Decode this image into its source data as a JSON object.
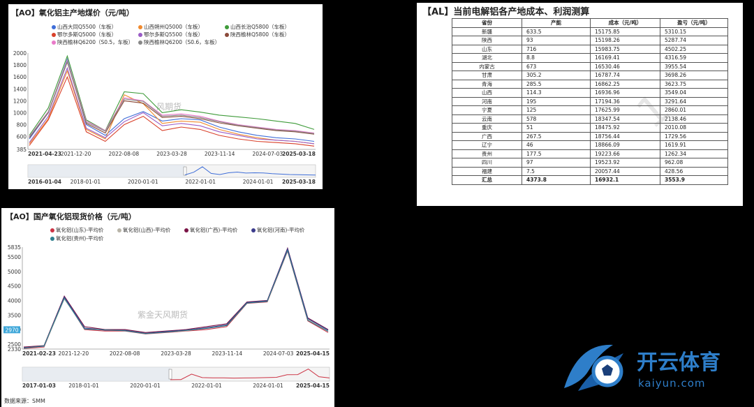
{
  "panel1": {
    "title": "【AO】氧化铝主产地煤价（元/吨）",
    "watermark": "风期货",
    "chart_data": {
      "type": "line",
      "title": "【AO】氧化铝主产地煤价（元/吨）",
      "yticks": [
        385.0,
        600,
        800,
        1000,
        1200,
        1400,
        1600,
        1800,
        2000
      ],
      "ylim": [
        385,
        2000
      ],
      "xticks_top": [
        "2021-04-23",
        "2021-12-20",
        "2022-08-08",
        "2023-03-28",
        "2023-11-14",
        "2024-07-03",
        "2025-03-18"
      ],
      "xticks_nav": [
        "2016-01-04",
        "2018-01-01",
        "2020-01-01",
        "2022-01-01",
        "2024-01-01",
        "2025-03-18"
      ],
      "series": [
        {
          "name": "山西大同Q5500（车板）",
          "color": "#3f6ed8",
          "values": [
            560,
            1000,
            1900,
            800,
            620,
            900,
            1020,
            860,
            900,
            880,
            760,
            680,
            620,
            580,
            560,
            520
          ]
        },
        {
          "name": "山西朔州Q5000（车板）",
          "color": "#f08a2e",
          "values": [
            480,
            900,
            1700,
            720,
            560,
            1300,
            1150,
            820,
            860,
            840,
            720,
            640,
            580,
            540,
            520,
            480
          ]
        },
        {
          "name": "山西长治Q5800（车板）",
          "color": "#3f9b3a",
          "values": [
            620,
            1080,
            1950,
            880,
            700,
            1350,
            1320,
            1000,
            1050,
            1010,
            960,
            930,
            900,
            860,
            820,
            720
          ]
        },
        {
          "name": "鄂尔多斯Q5000（车板）",
          "color": "#d9402a",
          "values": [
            450,
            880,
            1600,
            680,
            520,
            800,
            940,
            700,
            760,
            720,
            620,
            560,
            520,
            500,
            480,
            440
          ]
        },
        {
          "name": "鄂尔多斯Q5500（车板）",
          "color": "#9a5cc6",
          "values": [
            500,
            940,
            1750,
            740,
            580,
            850,
            1000,
            780,
            820,
            780,
            680,
            620,
            560,
            540,
            520,
            480
          ]
        },
        {
          "name": "陕西榆林Q5800（车板）",
          "color": "#8b4a3a",
          "values": [
            580,
            1000,
            1850,
            820,
            660,
            1200,
            1160,
            920,
            940,
            900,
            830,
            780,
            740,
            700,
            680,
            640
          ]
        },
        {
          "name": "陕西榆林Q6200（S0.5，车板）",
          "color": "#e97ac9",
          "values": [
            600,
            1020,
            1880,
            860,
            700,
            1250,
            1200,
            960,
            980,
            940,
            860,
            800,
            760,
            720,
            700,
            660
          ]
        },
        {
          "name": "陕西榆林Q6200（S0.6，车板）",
          "color": "#888888",
          "values": [
            590,
            1010,
            1860,
            840,
            690,
            1230,
            1190,
            940,
            960,
            920,
            850,
            790,
            750,
            710,
            690,
            650
          ]
        }
      ]
    },
    "legend": [
      "山西大同Q5500（车板）",
      "山西朔州Q5000（车板）",
      "山西长治Q5800（车板）",
      "鄂尔多斯Q5000（车板）",
      "鄂尔多斯Q5500（车板）",
      "陕西榆林Q5800（车板）",
      "陕西榆林Q6200（S0.5，车板）",
      "陕西榆林Q6200（S0.6，车板）"
    ]
  },
  "panel2": {
    "title": "【AL】当前电解铝各产地成本、利润测算",
    "watermark": "1",
    "chart_data": {
      "type": "table",
      "columns": [
        "省份",
        "产能",
        "成本（元/吨）",
        "盈亏（元/吨）"
      ],
      "rows": [
        [
          "新疆",
          "633.5",
          "15175.85",
          "5310.15"
        ],
        [
          "陕西",
          "93",
          "15198.26",
          "5287.74"
        ],
        [
          "山东",
          "716",
          "15983.75",
          "4502.25"
        ],
        [
          "湖北",
          "8.8",
          "16169.41",
          "4316.59"
        ],
        [
          "内蒙古",
          "673",
          "16530.46",
          "3955.54"
        ],
        [
          "甘肃",
          "305.2",
          "16787.74",
          "3698.26"
        ],
        [
          "青海",
          "285.5",
          "16862.25",
          "3623.75"
        ],
        [
          "山西",
          "114.3",
          "16936.96",
          "3549.04"
        ],
        [
          "河南",
          "195",
          "17194.36",
          "3291.64"
        ],
        [
          "宁夏",
          "125",
          "17625.99",
          "2860.01"
        ],
        [
          "云南",
          "578",
          "18347.54",
          "2138.46"
        ],
        [
          "重庆",
          "51",
          "18475.92",
          "2010.08"
        ],
        [
          "广西",
          "267.5",
          "18756.44",
          "1729.56"
        ],
        [
          "辽宁",
          "46",
          "18866.09",
          "1619.91"
        ],
        [
          "贵州",
          "177.5",
          "19223.66",
          "1262.34"
        ],
        [
          "四川",
          "97",
          "19523.92",
          "962.08"
        ],
        [
          "福建",
          "7.5",
          "20057.44",
          "428.56"
        ],
        [
          "汇总",
          "4373.8",
          "16932.1",
          "3553.9"
        ]
      ]
    }
  },
  "panel3": {
    "title": "【AO】国产氧化铝现货价格（元/吨）",
    "watermark": "紫金天风期货",
    "source": "数据来源：SMM",
    "last_value": "2970",
    "chart_data": {
      "type": "line",
      "title": "【AO】国产氧化铝现货价格（元/吨）",
      "yticks": [
        2330,
        2500,
        3000,
        3500,
        4000,
        4500,
        5000,
        5500,
        5835
      ],
      "ylim": [
        2330,
        5835
      ],
      "xticks_top": [
        "2021-02-23",
        "2021-12-20",
        "2022-08-08",
        "2023-03-28",
        "2023-11-14",
        "2024-07-03",
        "2025-04-15"
      ],
      "xticks_nav": [
        "2017-01-03",
        "2018-01-01",
        "2020-01-01",
        "2022-01-01",
        "2024-01-01",
        "2025-04-15"
      ],
      "series": [
        {
          "name": "氧化铝(山东)-平均价",
          "color": "#cc3344",
          "values": [
            2350,
            2400,
            4100,
            3000,
            2950,
            2950,
            2850,
            2900,
            2950,
            3000,
            3100,
            3900,
            3950,
            5700,
            3300,
            2900
          ]
        },
        {
          "name": "氧化铝(山西)-平均价",
          "color": "#b8b4a8",
          "values": [
            2380,
            2420,
            4050,
            3050,
            3000,
            2980,
            2880,
            2920,
            2960,
            3050,
            3150,
            3920,
            3980,
            5750,
            3350,
            2950
          ]
        },
        {
          "name": "氧化铝(广西)-平均价",
          "color": "#7a1446",
          "values": [
            2400,
            2450,
            4150,
            3100,
            3000,
            3000,
            2900,
            2950,
            3000,
            3100,
            3200,
            3950,
            4000,
            5800,
            3400,
            3000
          ]
        },
        {
          "name": "氧化铝(河南)-平均价",
          "color": "#3c3c8c",
          "values": [
            2370,
            2430,
            4120,
            3050,
            2980,
            2970,
            2870,
            2930,
            2980,
            3060,
            3160,
            3930,
            3990,
            5780,
            3380,
            2980
          ]
        },
        {
          "name": "氧化铝(贵州)-平均价",
          "color": "#2f7f8f",
          "values": [
            2360,
            2440,
            4080,
            3020,
            2990,
            2960,
            2860,
            2910,
            2970,
            3040,
            3140,
            3910,
            3970,
            5720,
            3320,
            2940
          ]
        }
      ]
    },
    "legend": [
      "氧化铝(山东)-平均价",
      "氧化铝(山西)-平均价",
      "氧化铝(广西)-平均价",
      "氧化铝(河南)-平均价",
      "氧化铝(贵州)-平均价"
    ]
  },
  "logo": {
    "brand": "开云体育",
    "sub": "kaiyun.com"
  }
}
